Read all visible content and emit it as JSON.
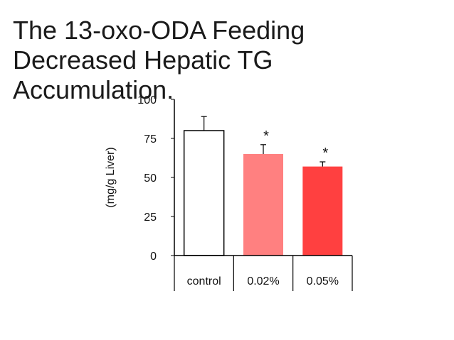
{
  "slide": {
    "title": "The 13-oxo-ODA Feeding\nDecreased Hepatic TG\nAccumulation."
  },
  "colors": {
    "control": "#ffffff",
    "dose_low": "#ff8080",
    "dose_high": "#ff4040",
    "axis": "#000000"
  },
  "chart_data": {
    "type": "bar",
    "title": "",
    "xlabel": "",
    "ylabel": "(mg/g Liver)",
    "ylim": [
      0,
      100
    ],
    "yticks": [
      0,
      25,
      50,
      75,
      100
    ],
    "categories": [
      "control",
      "0.02%",
      "0.05%"
    ],
    "values": [
      80,
      65,
      57
    ],
    "error_bars": [
      9,
      6,
      3
    ],
    "significance": [
      "",
      "*",
      "*"
    ],
    "grid": false,
    "legend": "none"
  }
}
